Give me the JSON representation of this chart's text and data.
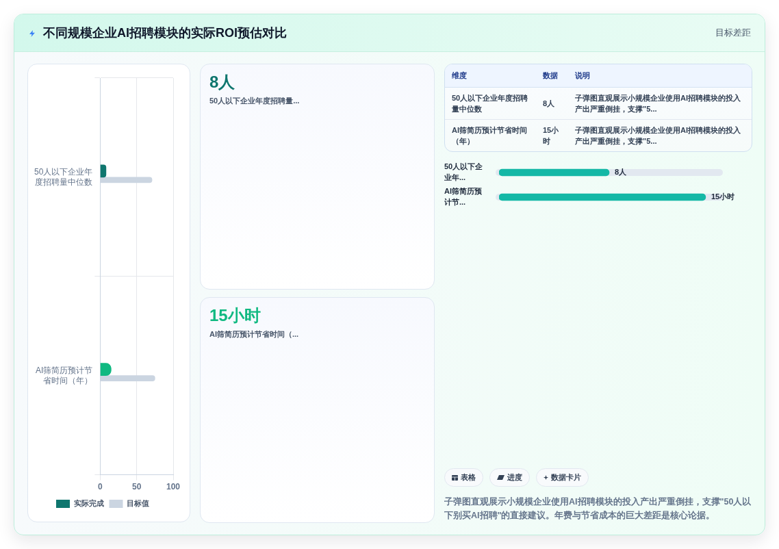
{
  "chart_data": [
    {
      "type": "other",
      "title": "不同规模企业AI招聘模块的实际ROI预估对比",
      "subtitle": "目标差距"
    },
    {
      "type": "bar",
      "orientation": "horizontal",
      "categories": [
        "50人以下企业年度招聘量中位数",
        "AI筛简历预计节省时间（年）"
      ],
      "series": [
        {
          "name": "实际完成",
          "colors": [
            "#0f766e",
            "#10b981"
          ],
          "values": [
            8,
            15
          ]
        },
        {
          "name": "目标值",
          "color": "#cbd5e1",
          "values": [
            71,
            75
          ]
        }
      ],
      "xlim": [
        0,
        100
      ],
      "xticks": [
        0,
        50,
        100
      ],
      "grid": true,
      "legend": "bottom"
    },
    {
      "type": "other",
      "title": "8人",
      "subtitle": "50人以下企业年度招聘量...",
      "color": "#0f766e"
    },
    {
      "type": "other",
      "title": "15小时",
      "subtitle": "AI筛简历预计节省时间（...",
      "color": "#10b981"
    },
    {
      "type": "other",
      "categories": [
        "维度",
        "数据",
        "说明"
      ],
      "cell_labels": [
        [
          "50人以下企业年度招聘量中位数",
          "8人",
          "子弹图直观展示小规模企业使用AI招聘模块的投入产出严重倒挂，支撑\"5..."
        ],
        [
          "AI筛简历预计节省时间（年）",
          "15小时",
          "子弹图直观展示小规模企业使用AI招聘模块的投入产出严重倒挂，支撑\"5..."
        ]
      ]
    },
    {
      "type": "bar",
      "orientation": "horizontal",
      "categories": [
        "50人以下企业年...",
        "AI筛简历预计节..."
      ],
      "values": [
        8,
        15
      ],
      "value_labels": [
        "8人",
        "15小时"
      ],
      "color": "#14b8a6",
      "tick_labels": "y",
      "grid": "y"
    },
    {
      "type": "other",
      "categories": [
        "表格",
        "进度",
        "数据卡片"
      ],
      "annotations": [
        "子弹图直观展示小规模企业使用AI招聘模块的投入产出严重倒挂，支撑\"50人以下别买AI招聘\"的直接建议。年费与节省成本的巨大差距是核心论据。"
      ]
    }
  ]
}
